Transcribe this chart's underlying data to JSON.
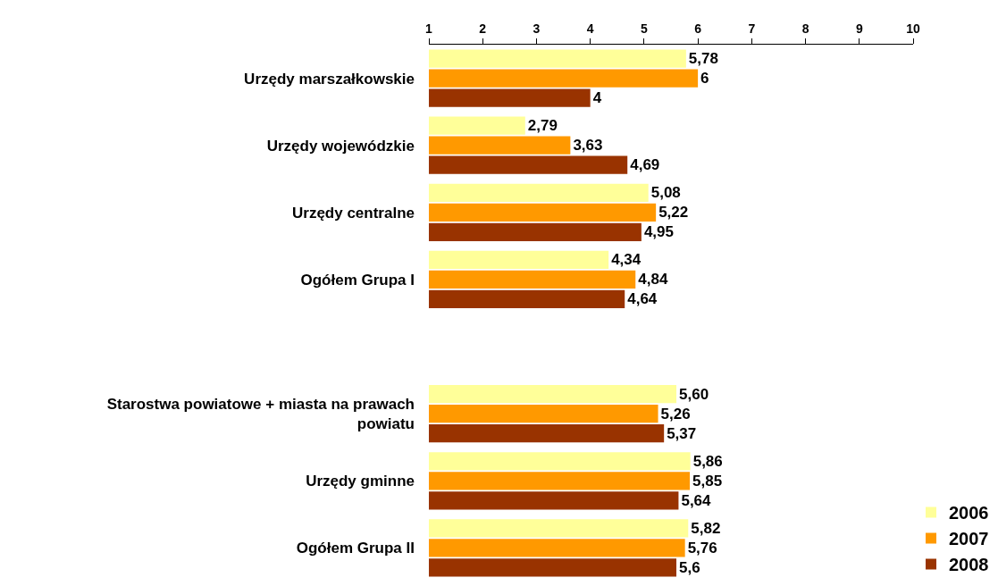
{
  "chart_data": {
    "type": "bar",
    "orientation": "horizontal",
    "categories": [
      "Urzędy marszałkowskie",
      "Urzędy wojewódzkie",
      "Urzędy centralne",
      "Ogółem Grupa I",
      null,
      "Starostwa powiatowe + miasta na prawach powiatu",
      "Urzędy gminne",
      "Ogółem Grupa II"
    ],
    "series": [
      {
        "name": "2006",
        "color": "#ffff99",
        "values": [
          5.78,
          2.79,
          5.08,
          4.34,
          null,
          5.6,
          5.86,
          5.82
        ],
        "value_labels": [
          "5,78",
          "2,79",
          "5,08",
          "4,34",
          null,
          "5,60",
          "5,86",
          "5,82"
        ]
      },
      {
        "name": "2007",
        "color": "#ff9900",
        "values": [
          6,
          3.63,
          5.22,
          4.84,
          null,
          5.26,
          5.85,
          5.76
        ],
        "value_labels": [
          "6",
          "3,63",
          "5,22",
          "4,84",
          null,
          "5,26",
          "5,85",
          "5,76"
        ]
      },
      {
        "name": "2008",
        "color": "#993300",
        "values": [
          4,
          4.69,
          4.95,
          4.64,
          null,
          5.37,
          5.64,
          5.6
        ],
        "value_labels": [
          "4",
          "4,69",
          "4,95",
          "4,64",
          null,
          "5,37",
          "5,64",
          "5,6"
        ]
      }
    ],
    "xlim": [
      1,
      10
    ],
    "xticks": [
      1,
      2,
      3,
      4,
      5,
      6,
      7,
      8,
      9,
      10
    ],
    "legend": "bottom right"
  }
}
